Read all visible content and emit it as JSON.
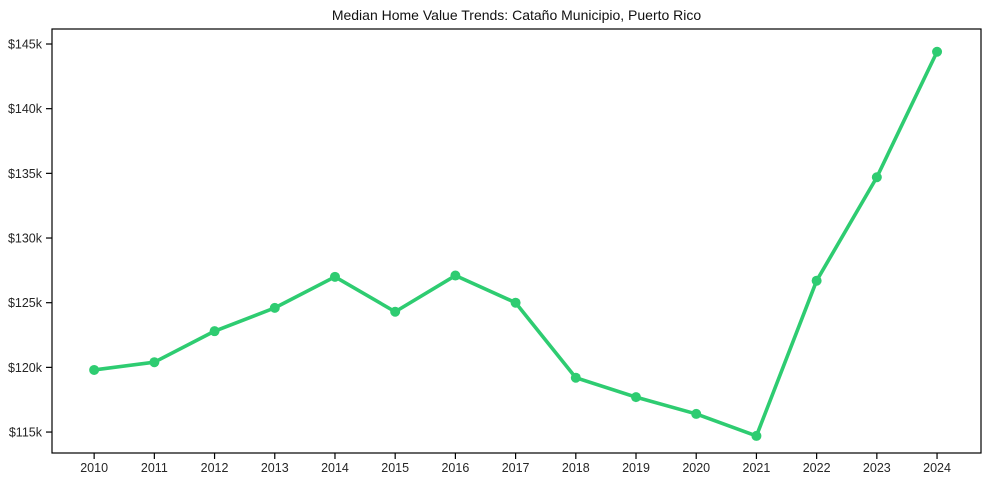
{
  "chart_data": {
    "type": "line",
    "title": "Median Home Value Trends: Cataño Municipio, Puerto Rico",
    "x": [
      2010,
      2011,
      2012,
      2013,
      2014,
      2015,
      2016,
      2017,
      2018,
      2019,
      2020,
      2021,
      2022,
      2023,
      2024
    ],
    "x_tick_labels": [
      "2010",
      "2011",
      "2012",
      "2013",
      "2014",
      "2015",
      "2016",
      "2017",
      "2018",
      "2019",
      "2020",
      "2021",
      "2022",
      "2023",
      "2024"
    ],
    "series": [
      {
        "name": "median-home-value",
        "unit": "USD thousands",
        "values": [
          119.8,
          120.4,
          122.8,
          124.6,
          127.0,
          124.3,
          127.1,
          125.0,
          119.2,
          117.7,
          116.4,
          114.7,
          126.7,
          134.7,
          144.4
        ],
        "color": "#2ecc71"
      }
    ],
    "y_ticks": [
      {
        "value": 115,
        "label": "$115k"
      },
      {
        "value": 120,
        "label": "$120k"
      },
      {
        "value": 125,
        "label": "$125k"
      },
      {
        "value": 130,
        "label": "$130k"
      },
      {
        "value": 135,
        "label": "$135k"
      },
      {
        "value": 140,
        "label": "$140k"
      },
      {
        "value": 145,
        "label": "$145k"
      }
    ],
    "xlabel": "",
    "ylabel": "",
    "xlim": [
      2009.3,
      2024.73
    ],
    "ylim": [
      113.38,
      146.16
    ],
    "grid": false,
    "legend": "none",
    "marker": "circle",
    "styles": {
      "line_color": "#2ecc71",
      "marker_color": "#2ecc71",
      "axis_color": "#000000",
      "tick_label_color": "#262626",
      "title_color": "#111111",
      "background": "#ffffff"
    }
  }
}
